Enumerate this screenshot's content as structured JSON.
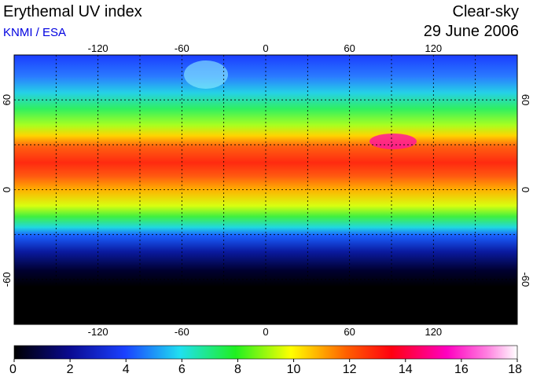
{
  "header": {
    "title": "Erythemal UV index",
    "source": "KNMI / ESA",
    "condition": "Clear-sky",
    "date": "29 June 2006"
  },
  "map": {
    "lon_range": [
      -180,
      180
    ],
    "lat_range": [
      -90,
      90
    ],
    "lon_ticks": [
      -120,
      -60,
      0,
      60,
      120
    ],
    "lat_ticks": [
      -60,
      0,
      60
    ]
  },
  "colorbar": {
    "range": [
      0,
      18
    ],
    "ticks": [
      0,
      2,
      4,
      6,
      8,
      10,
      12,
      14,
      16,
      18
    ]
  }
}
